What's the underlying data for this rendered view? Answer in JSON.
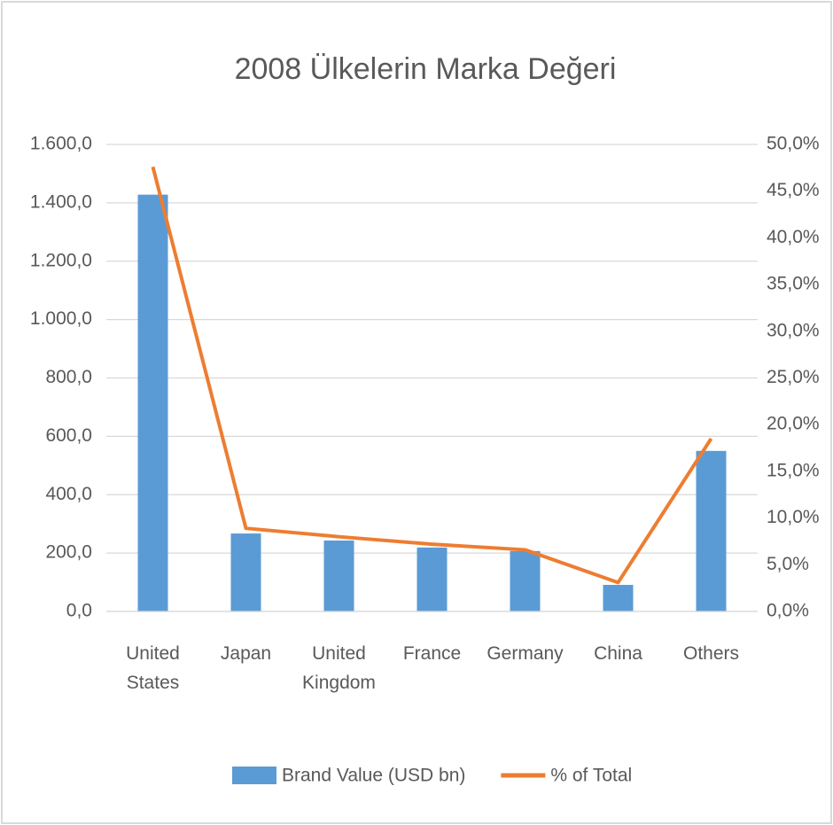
{
  "chart_data": {
    "type": "combo",
    "title": "2008 Ülkelerin Marka Değeri",
    "categories": [
      "United States",
      "Japan",
      "United Kingdom",
      "France",
      "Germany",
      "China",
      "Others"
    ],
    "series": [
      {
        "name": "Brand Value (USD bn)",
        "type": "bar",
        "color": "#5b9bd5",
        "values": [
          1428,
          267,
          243,
          219,
          207,
          91,
          550
        ]
      },
      {
        "name": "% of Total",
        "type": "line",
        "axis": "y2",
        "color": "#ed7d31",
        "values": [
          47.6,
          8.9,
          8.0,
          7.2,
          6.6,
          3.1,
          18.5
        ]
      }
    ],
    "ylim": [
      0,
      1600
    ],
    "yticks": [
      {
        "value": 0,
        "label": "0,0"
      },
      {
        "value": 200,
        "label": "200,0"
      },
      {
        "value": 400,
        "label": "400,0"
      },
      {
        "value": 600,
        "label": "600,0"
      },
      {
        "value": 800,
        "label": "800,0"
      },
      {
        "value": 1000,
        "label": "1.000,0"
      },
      {
        "value": 1200,
        "label": "1.200,0"
      },
      {
        "value": 1400,
        "label": "1.400,0"
      },
      {
        "value": 1600,
        "label": "1.600,0"
      }
    ],
    "y2lim": [
      0,
      50
    ],
    "y2ticks": [
      {
        "value": 0,
        "label": "0,0%"
      },
      {
        "value": 5,
        "label": "5,0%"
      },
      {
        "value": 10,
        "label": "10,0%"
      },
      {
        "value": 15,
        "label": "15,0%"
      },
      {
        "value": 20,
        "label": "20,0%"
      },
      {
        "value": 25,
        "label": "25,0%"
      },
      {
        "value": 30,
        "label": "30,0%"
      },
      {
        "value": 35,
        "label": "35,0%"
      },
      {
        "value": 40,
        "label": "40,0%"
      },
      {
        "value": 45,
        "label": "45,0%"
      },
      {
        "value": 50,
        "label": "50,0%"
      }
    ],
    "grid": true,
    "legend": "bottom"
  }
}
